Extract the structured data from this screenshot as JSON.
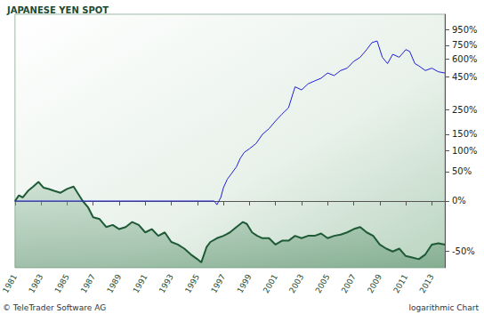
{
  "chart_data": {
    "type": "line",
    "title": "JAPANESE YEN SPOT",
    "annotations": [
      "© TeleTrader Software AG",
      "logarithmic Chart"
    ],
    "log": "y",
    "grid": false,
    "xlim": [
      1981,
      2014
    ],
    "xticks": [
      1981,
      1983,
      1985,
      1987,
      1989,
      1991,
      1993,
      1995,
      1997,
      1999,
      2001,
      2003,
      2005,
      2007,
      2009,
      2011,
      2013
    ],
    "ylim": [
      -60,
      1200
    ],
    "yticks": [
      {
        "value": -50,
        "label": "-50%"
      },
      {
        "value": 0,
        "label": "0%"
      },
      {
        "value": 50,
        "label": "50%"
      },
      {
        "value": 100,
        "label": "100%"
      },
      {
        "value": 150,
        "label": "150%"
      },
      {
        "value": 250,
        "label": "250%"
      },
      {
        "value": 450,
        "label": "450%"
      },
      {
        "value": 600,
        "label": "600%"
      },
      {
        "value": 750,
        "label": "750%"
      },
      {
        "value": 950,
        "label": "950%"
      }
    ],
    "series": [
      {
        "type": "area",
        "color": "#1e5a36",
        "x": [
          1981,
          1981.3,
          1981.6,
          1982,
          1982.4,
          1982.8,
          1983.2,
          1983.6,
          1984,
          1984.5,
          1985,
          1985.5,
          1985.8,
          1986.2,
          1986.6,
          1987,
          1987.5,
          1988,
          1988.5,
          1989,
          1989.5,
          1990,
          1990.5,
          1991,
          1991.5,
          1992,
          1992.5,
          1993,
          1993.5,
          1994,
          1994.5,
          1995,
          1995.3,
          1995.7,
          1996,
          1996.5,
          1997,
          1997.5,
          1998,
          1998.5,
          1998.8,
          1999.2,
          1999.6,
          2000,
          2000.5,
          2001,
          2001.5,
          2002,
          2002.5,
          2003,
          2003.5,
          2004,
          2004.5,
          2005,
          2005.5,
          2006,
          2006.5,
          2007,
          2007.5,
          2008,
          2008.5,
          2009,
          2009.5,
          2010,
          2010.5,
          2011,
          2011.5,
          2012,
          2012.5,
          2013,
          2013.5,
          2014
        ],
        "values": [
          0,
          8,
          5,
          15,
          22,
          30,
          20,
          18,
          15,
          12,
          18,
          22,
          12,
          0,
          -8,
          -20,
          -22,
          -30,
          -28,
          -32,
          -30,
          -25,
          -28,
          -35,
          -32,
          -38,
          -35,
          -43,
          -45,
          -48,
          -52,
          -55,
          -57,
          -47,
          -43,
          -40,
          -38,
          -35,
          -30,
          -25,
          -27,
          -35,
          -38,
          -40,
          -40,
          -45,
          -42,
          -42,
          -38,
          -40,
          -38,
          -38,
          -36,
          -40,
          -38,
          -37,
          -35,
          -32,
          -30,
          -35,
          -38,
          -45,
          -48,
          -50,
          -48,
          -53,
          -54,
          -55,
          -52,
          -45,
          -44,
          -45
        ]
      },
      {
        "type": "line",
        "color": "#1f1fd6",
        "x": [
          1981,
          1996.3,
          1996.5,
          1996.8,
          1997,
          1997.3,
          1997.6,
          1998,
          1998.3,
          1998.6,
          1999,
          1999.5,
          2000,
          2000.5,
          2001,
          2001.5,
          2002,
          2002.5,
          2003,
          2003.5,
          2004,
          2004.5,
          2005,
          2005.5,
          2006,
          2006.5,
          2007,
          2007.5,
          2008,
          2008.4,
          2008.8,
          2009.2,
          2009.6,
          2010,
          2010.5,
          2011,
          2011.3,
          2011.7,
          2012,
          2012.5,
          2013,
          2013.5,
          2014
        ],
        "values": [
          0,
          0,
          -5,
          5,
          20,
          35,
          45,
          60,
          80,
          95,
          105,
          120,
          150,
          170,
          200,
          230,
          260,
          380,
          360,
          400,
          420,
          440,
          480,
          460,
          500,
          520,
          580,
          620,
          700,
          780,
          800,
          620,
          560,
          650,
          620,
          700,
          680,
          560,
          540,
          500,
          520,
          490,
          480
        ]
      }
    ]
  }
}
